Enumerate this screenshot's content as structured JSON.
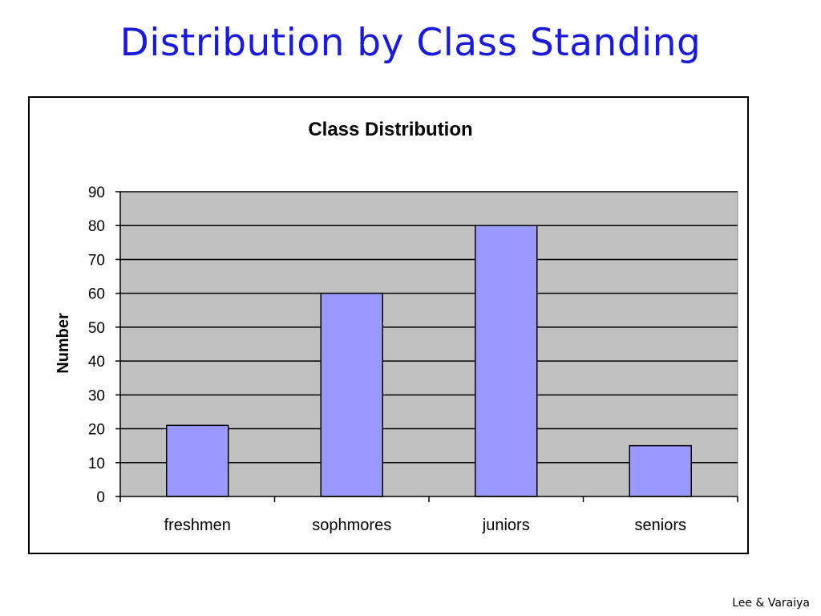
{
  "slide": {
    "title": "Distribution by Class Standing",
    "credit": "Lee & Varaiya"
  },
  "colors": {
    "title": "#1a1adb",
    "plot_background": "#c0c0c0",
    "bar_fill": "#9999ff"
  },
  "chart_data": {
    "type": "bar",
    "title": "Class Distribution",
    "xlabel": "",
    "ylabel": "Number",
    "categories": [
      "freshmen",
      "sophmores",
      "juniors",
      "seniors"
    ],
    "values": [
      21,
      60,
      80,
      15
    ],
    "ylim": [
      0,
      90
    ],
    "yticks": [
      0,
      10,
      20,
      30,
      40,
      50,
      60,
      70,
      80,
      90
    ],
    "grid": true,
    "legend": "none"
  }
}
